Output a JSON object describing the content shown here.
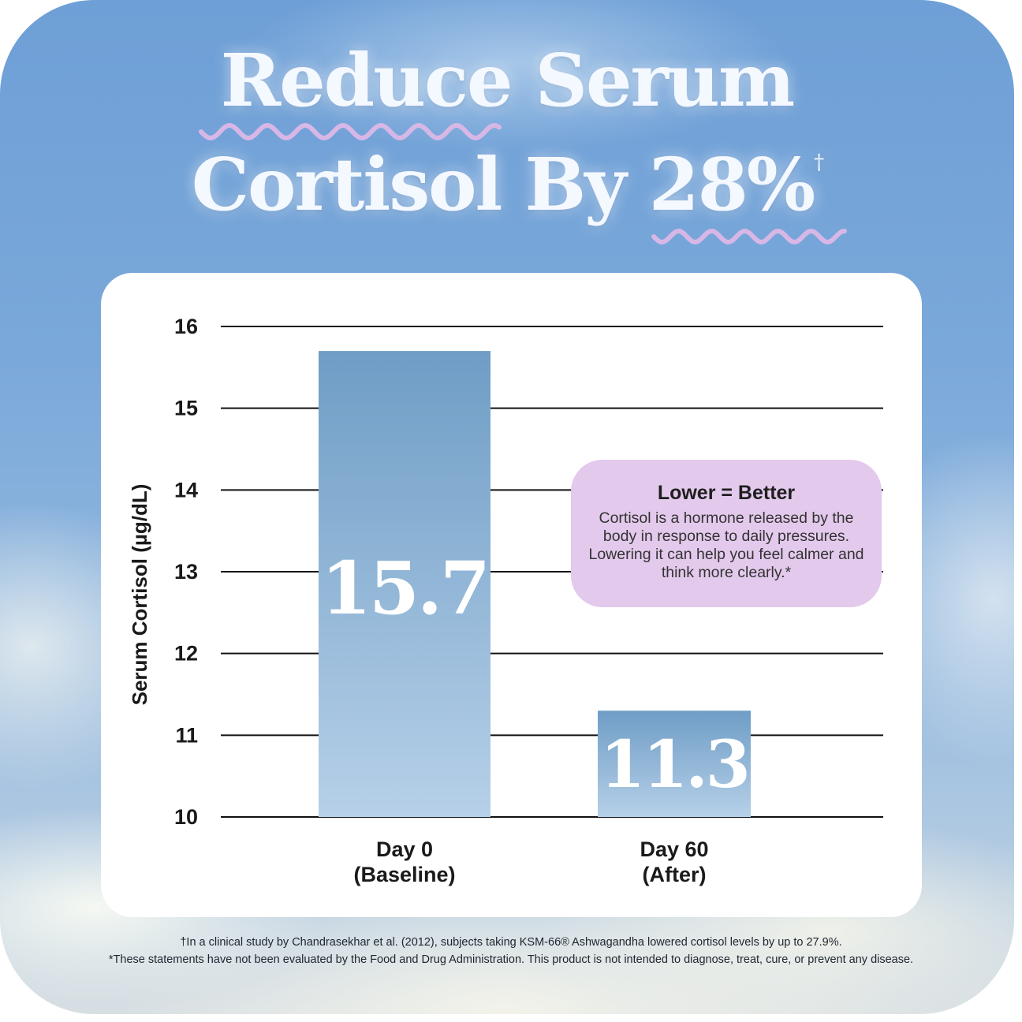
{
  "headline": {
    "line1": "Reduce Serum",
    "line2_prefix": "Cortisol By ",
    "line2_highlight": "28%",
    "dagger": "†"
  },
  "colors": {
    "squiggle": "#d7b7e6",
    "bar_top": "#6f9dc6",
    "bar_bottom": "#b6d0e8",
    "callout_bg": "#e3c9ec",
    "gridline": "#111111"
  },
  "chart_data": {
    "type": "bar",
    "categories": [
      [
        "Day 0",
        "(Baseline)"
      ],
      [
        "Day 60",
        "(After)"
      ]
    ],
    "values": [
      15.7,
      11.3
    ],
    "value_labels": [
      "15.7",
      "11.3"
    ],
    "ylabel": "Serum Cortisol (µg/dL)",
    "ylim": [
      10,
      16
    ],
    "yticks": [
      16,
      15,
      14,
      13,
      12,
      11,
      10
    ],
    "grid": true
  },
  "callout": {
    "title": "Lower = Better",
    "body": "Cortisol is a hormone released by the body in response to daily pressures. Lowering it can help you feel calmer and think more clearly.*"
  },
  "footnotes": {
    "line1": "†In a clinical study by Chandrasekhar et al. (2012), subjects taking KSM-66® Ashwagandha lowered cortisol levels by up to 27.9%.",
    "line2": "*These statements have not been evaluated by the Food and Drug Administration. This product is not intended to diagnose, treat, cure, or prevent any disease."
  }
}
